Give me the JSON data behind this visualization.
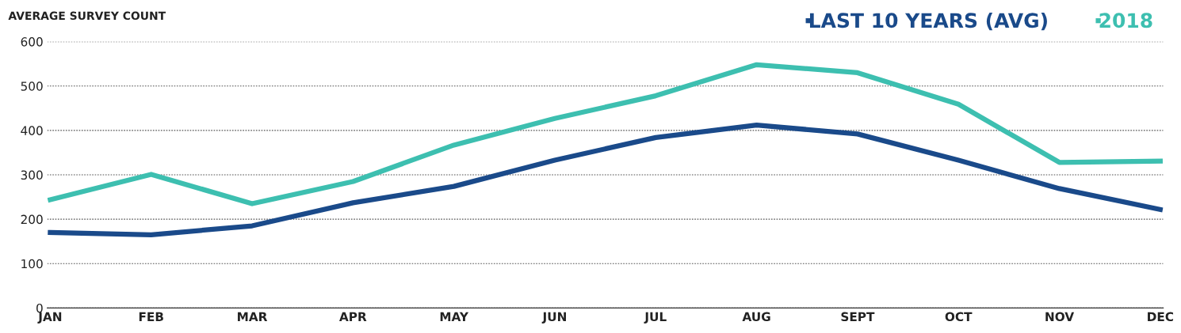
{
  "chart_data": {
    "type": "line",
    "ylabel": "AVERAGE SURVEY COUNT",
    "categories": [
      "JAN",
      "FEB",
      "MAR",
      "APR",
      "MAY",
      "JUN",
      "JUL",
      "AUG",
      "SEPT",
      "OCT",
      "NOV",
      "DEC"
    ],
    "series": [
      {
        "name": "LAST 10 YEARS (AVG)",
        "color": "#1a4a8a",
        "values": [
          170,
          165,
          185,
          237,
          274,
          333,
          384,
          412,
          392,
          333,
          269,
          222
        ]
      },
      {
        "name": "2018",
        "color": "#3dbfb0",
        "values": [
          244,
          301,
          235,
          285,
          367,
          427,
          478,
          548,
          530,
          459,
          328,
          331
        ]
      }
    ],
    "ylim": [
      0,
      600
    ],
    "yticks": [
      0,
      100,
      200,
      300,
      400,
      500,
      600
    ],
    "grid": "y",
    "legend": "top right",
    "marker": "none",
    "line_style": "solid"
  }
}
